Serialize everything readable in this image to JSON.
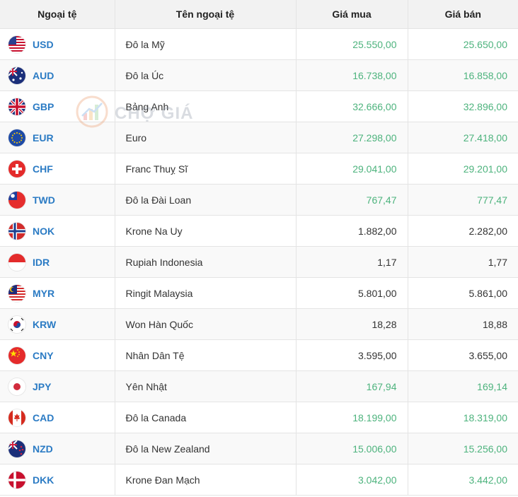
{
  "header": {
    "col_code": "Ngoại tệ",
    "col_name": "Tên ngoại tệ",
    "col_buy": "Giá mua",
    "col_sell": "Giá bán"
  },
  "watermark": {
    "text": "CHỢ GIÁ",
    "icon": "chart-logo-icon"
  },
  "colors": {
    "code": "#2b7bc4",
    "price_green": "#4db37d",
    "price_dark": "#333333"
  },
  "rows": [
    {
      "code": "USD",
      "name": "Đô la Mỹ",
      "buy": "25.550,00",
      "sell": "25.650,00",
      "color": "green",
      "flag": "us-flag-icon"
    },
    {
      "code": "AUD",
      "name": "Đô la Úc",
      "buy": "16.738,00",
      "sell": "16.858,00",
      "color": "green",
      "flag": "au-flag-icon"
    },
    {
      "code": "GBP",
      "name": "Bảng Anh",
      "buy": "32.666,00",
      "sell": "32.896,00",
      "color": "green",
      "flag": "gb-flag-icon"
    },
    {
      "code": "EUR",
      "name": "Euro",
      "buy": "27.298,00",
      "sell": "27.418,00",
      "color": "green",
      "flag": "eu-flag-icon"
    },
    {
      "code": "CHF",
      "name": "Franc Thuỵ Sĩ",
      "buy": "29.041,00",
      "sell": "29.201,00",
      "color": "green",
      "flag": "ch-flag-icon"
    },
    {
      "code": "TWD",
      "name": "Đô la Đài Loan",
      "buy": "767,47",
      "sell": "777,47",
      "color": "green",
      "flag": "tw-flag-icon"
    },
    {
      "code": "NOK",
      "name": "Krone Na Uy",
      "buy": "1.882,00",
      "sell": "2.282,00",
      "color": "dark",
      "flag": "no-flag-icon"
    },
    {
      "code": "IDR",
      "name": "Rupiah Indonesia",
      "buy": "1,17",
      "sell": "1,77",
      "color": "dark",
      "flag": "id-flag-icon"
    },
    {
      "code": "MYR",
      "name": "Ringit Malaysia",
      "buy": "5.801,00",
      "sell": "5.861,00",
      "color": "dark",
      "flag": "my-flag-icon"
    },
    {
      "code": "KRW",
      "name": "Won Hàn Quốc",
      "buy": "18,28",
      "sell": "18,88",
      "color": "dark",
      "flag": "kr-flag-icon"
    },
    {
      "code": "CNY",
      "name": "Nhân Dân Tệ",
      "buy": "3.595,00",
      "sell": "3.655,00",
      "color": "dark",
      "flag": "cn-flag-icon"
    },
    {
      "code": "JPY",
      "name": "Yên Nhật",
      "buy": "167,94",
      "sell": "169,14",
      "color": "green",
      "flag": "jp-flag-icon"
    },
    {
      "code": "CAD",
      "name": "Đô la Canada",
      "buy": "18.199,00",
      "sell": "18.319,00",
      "color": "green",
      "flag": "ca-flag-icon"
    },
    {
      "code": "NZD",
      "name": "Đô la New Zealand",
      "buy": "15.006,00",
      "sell": "15.256,00",
      "color": "green",
      "flag": "nz-flag-icon"
    },
    {
      "code": "DKK",
      "name": "Krone Đan Mạch",
      "buy": "3.042,00",
      "sell": "3.442,00",
      "color": "green",
      "flag": "dk-flag-icon"
    }
  ]
}
